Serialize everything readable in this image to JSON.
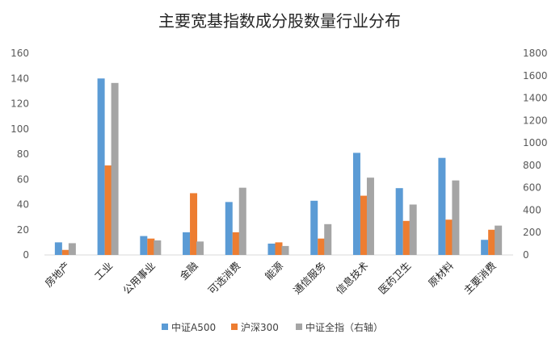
{
  "colors": {
    "series": [
      "#5B9BD5",
      "#ED7D31",
      "#A5A5A5"
    ],
    "axis": "#D9D9D9",
    "background": "#FFFFFF"
  },
  "chart_data": {
    "type": "bar",
    "title": "主要宽基指数成分股数量行业分布",
    "categories": [
      "房地产",
      "工业",
      "公用事业",
      "金融",
      "可选消费",
      "能源",
      "通信服务",
      "信息技术",
      "医药卫生",
      "原材料",
      "主要消费"
    ],
    "series": [
      {
        "name": "中证A500",
        "axis": "left",
        "values": [
          10,
          140,
          15,
          18,
          42,
          9,
          43,
          81,
          53,
          77,
          12
        ]
      },
      {
        "name": "沪深300",
        "axis": "left",
        "values": [
          4,
          71,
          13,
          49,
          18,
          10,
          13,
          47,
          27,
          28,
          20
        ]
      },
      {
        "name": "中证全指（右轴）",
        "axis": "right",
        "values": [
          105,
          1535,
          130,
          120,
          600,
          80,
          275,
          690,
          450,
          665,
          262
        ]
      }
    ],
    "y_left": {
      "min": 0,
      "max": 160,
      "step": 20
    },
    "y_right": {
      "min": 0,
      "max": 1800,
      "step": 200
    },
    "grid": false,
    "legend_position": "bottom"
  }
}
